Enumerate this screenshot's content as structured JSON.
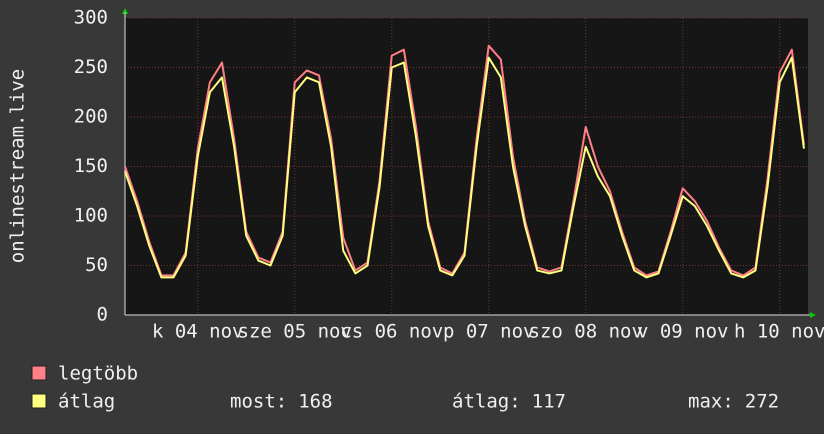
{
  "chart_data": {
    "type": "line",
    "y_label": "onlinestream.live",
    "x": [
      0,
      3,
      6,
      9,
      12,
      15,
      18,
      21,
      24,
      27,
      30,
      33,
      36,
      39,
      42,
      45,
      48,
      51,
      54,
      57,
      60,
      63,
      66,
      69,
      72,
      75,
      78,
      81,
      84,
      87,
      90,
      93,
      96,
      99,
      102,
      105,
      108,
      111,
      114,
      117,
      120,
      123,
      126,
      129,
      132,
      135,
      138,
      141,
      144,
      147,
      150,
      153,
      156,
      159,
      162,
      165,
      168
    ],
    "xlim": [
      0,
      169
    ],
    "xticks": [
      {
        "value": 18,
        "label": "k 04 nov"
      },
      {
        "value": 42,
        "label": "sze 05 nov"
      },
      {
        "value": 66,
        "label": "cs 06 nov"
      },
      {
        "value": 90,
        "label": "p 07 nov"
      },
      {
        "value": 114,
        "label": "szo 08 nov"
      },
      {
        "value": 138,
        "label": "v 09 nov"
      },
      {
        "value": 162,
        "label": "h 10 nov"
      }
    ],
    "ylim": [
      0,
      300
    ],
    "yticks": [
      0,
      50,
      100,
      150,
      200,
      250,
      300
    ],
    "grid": true,
    "series": [
      {
        "name": "legtöbb",
        "color": "#ff7f86",
        "values": [
          150,
          115,
          74,
          40,
          40,
          63,
          168,
          235,
          255,
          178,
          84,
          58,
          53,
          84,
          235,
          247,
          242,
          178,
          78,
          45,
          53,
          136,
          262,
          268,
          190,
          95,
          48,
          42,
          63,
          178,
          272,
          258,
          160,
          95,
          48,
          44,
          48,
          116,
          190,
          150,
          125,
          84,
          48,
          40,
          44,
          84,
          128,
          115,
          95,
          68,
          45,
          40,
          48,
          138,
          245,
          268,
          172
        ]
      },
      {
        "name": "átlag",
        "color": "#ffff80",
        "values": [
          145,
          110,
          70,
          38,
          38,
          60,
          160,
          225,
          240,
          170,
          80,
          55,
          50,
          80,
          225,
          240,
          235,
          170,
          65,
          42,
          50,
          130,
          250,
          255,
          180,
          90,
          45,
          40,
          60,
          170,
          260,
          240,
          150,
          90,
          45,
          42,
          45,
          110,
          170,
          140,
          120,
          80,
          45,
          38,
          42,
          80,
          120,
          110,
          90,
          65,
          42,
          38,
          45,
          130,
          235,
          260,
          168
        ]
      }
    ],
    "stats": [
      {
        "label": "most:",
        "value": 168
      },
      {
        "label": "átlag:",
        "value": 117
      },
      {
        "label": "max:",
        "value": 272
      }
    ]
  }
}
